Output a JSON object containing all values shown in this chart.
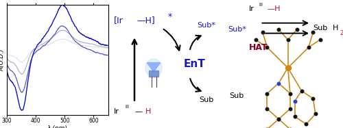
{
  "bg_color": "#ffffff",
  "plot_left": {
    "ylabel": "A(O.D.)",
    "xlabel": "λ (nm)",
    "xlim": [
      300,
      650
    ],
    "ylim": [
      -0.38,
      0.25
    ],
    "curves": [
      {
        "alpha": 1.0,
        "color": "#1010c8",
        "lw": 1.0
      },
      {
        "alpha": 0.75,
        "color": "#2020bb",
        "lw": 0.9
      },
      {
        "alpha": 0.5,
        "color": "#5555aa",
        "lw": 0.8
      },
      {
        "alpha": 0.3,
        "color": "#8888bb",
        "lw": 0.7
      }
    ]
  },
  "middle": {
    "EnT_color": "#1515cc",
    "IrH_excited_color": "#1515cc",
    "IrH_H_color": "#bb1133",
    "Sub_color": "#000000",
    "SubStar_color": "#1515cc",
    "led_body_color": "#88aaff",
    "led_glow_color": "#aaccff"
  },
  "right": {
    "IrIII_color": "#000000",
    "IrIII_H_color": "#bb1133",
    "SubStar_color": "#1515cc",
    "SubH2_color": "#000000",
    "SubH2_2_color": "#bb1133",
    "Sub_color": "#000000",
    "HAT_color": "#8b0022",
    "bond_color": "#cc8811",
    "atom_color": "#111111",
    "N_color": "#2244cc",
    "Ir_color": "#cc8811"
  }
}
